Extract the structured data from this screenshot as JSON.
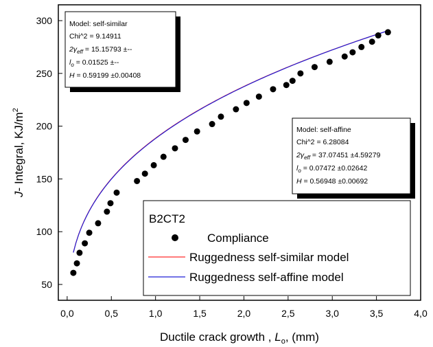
{
  "chart_data": {
    "type": "scatter",
    "xlabel": {
      "prefix": "Ductile crack growth , ",
      "var": "L",
      "sub": "o",
      "suffix": ", (mm)"
    },
    "ylabel": {
      "var": "J",
      "mid": "- Integral, KJ/m",
      "sup": "2"
    },
    "xlim": [
      -0.1,
      4.0
    ],
    "ylim": [
      35,
      315
    ],
    "xticks": [
      0.0,
      0.5,
      1.0,
      1.5,
      2.0,
      2.5,
      3.0,
      3.5,
      4.0
    ],
    "xtick_labels": [
      "0,0",
      "0,5",
      "1,0",
      "1,5",
      "2,0",
      "2,5",
      "3,0",
      "3,5",
      "4,0"
    ],
    "yticks": [
      50,
      100,
      150,
      200,
      250,
      300
    ],
    "ytick_labels": [
      "50",
      "100",
      "150",
      "200",
      "250",
      "300"
    ],
    "grid": false,
    "legend_position": "bottom-right",
    "legend_title": "B2CT2",
    "series": [
      {
        "name": "Compliance",
        "kind": "scatter",
        "color": "#000000",
        "x": [
          0.07,
          0.11,
          0.14,
          0.2,
          0.25,
          0.35,
          0.45,
          0.49,
          0.56,
          0.79,
          0.88,
          0.98,
          1.09,
          1.22,
          1.34,
          1.47,
          1.64,
          1.74,
          1.91,
          2.03,
          2.17,
          2.33,
          2.48,
          2.55,
          2.64,
          2.8,
          2.97,
          3.14,
          3.23,
          3.33,
          3.45,
          3.52,
          3.63
        ],
        "y": [
          61,
          70,
          80,
          89,
          99,
          108,
          119,
          127,
          137,
          148,
          155,
          163,
          171,
          179,
          187,
          195,
          202,
          209,
          216,
          222,
          228,
          235,
          239,
          243,
          250,
          256,
          261,
          266,
          270,
          275,
          280,
          286,
          289
        ]
      },
      {
        "name": "Ruggedness self-similar model",
        "kind": "line",
        "color": "#ff2a2a",
        "params": {
          "a": 178.6,
          "p": 0.35,
          "b": 10
        }
      },
      {
        "name": "Ruggedness self-affine model",
        "kind": "line",
        "color": "#1f1fd6",
        "params": {
          "a": 177.8,
          "p": 0.352,
          "b": 10.5
        }
      }
    ],
    "annotations": {
      "self_similar": {
        "model": "Model: self-similar",
        "chi": "Chi^2 = 9.14911",
        "gamma": "= 15.15793 ±--",
        "lo": "= 0.01525 ±--",
        "h": "= 0.59199 ±0.00408"
      },
      "self_affine": {
        "model": "Model: self-affine",
        "chi": "Chi^2 = 6.28084",
        "gamma": "= 37.07451 ±4.59279",
        "lo": "= 0.07472 ±0.02642",
        "h": "= 0.56948 ±0.00692"
      }
    }
  }
}
